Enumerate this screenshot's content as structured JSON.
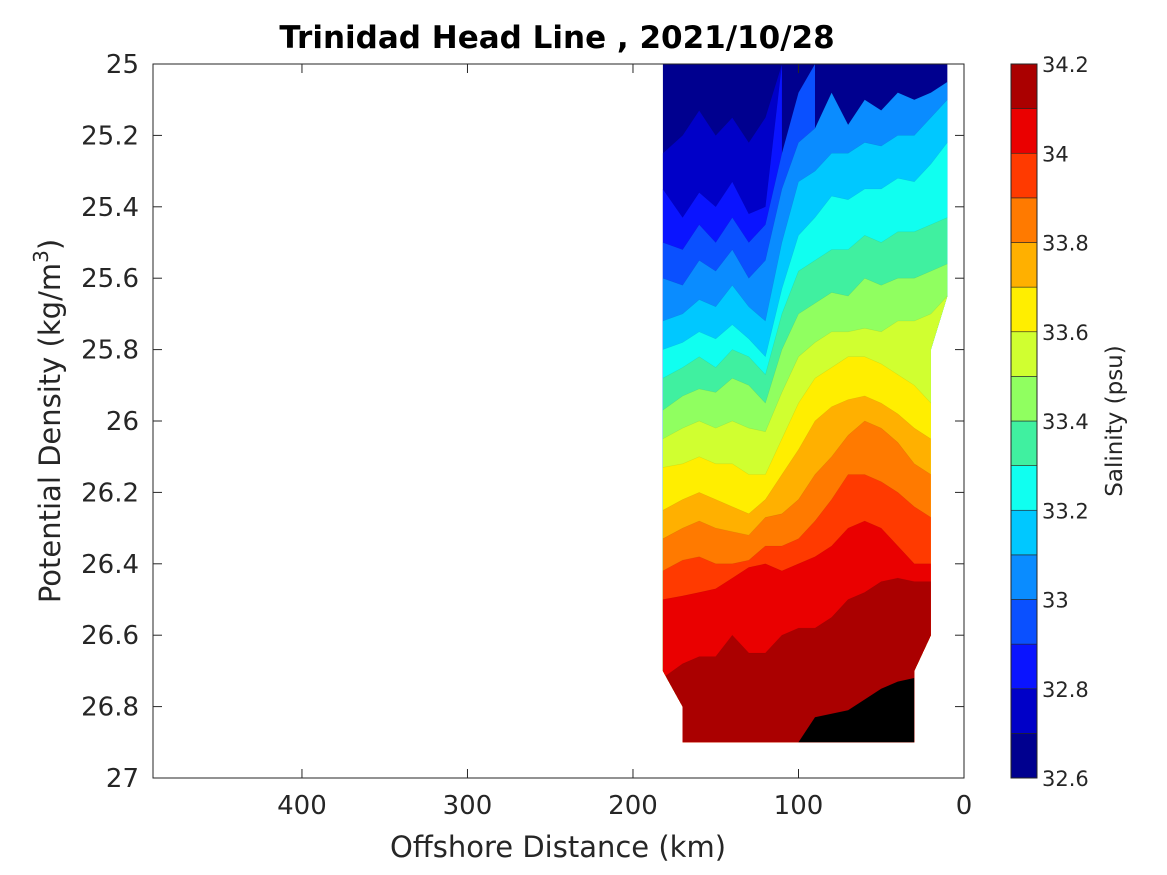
{
  "chart_data": {
    "type": "contour",
    "title": "Trinidad Head Line , 2021/10/28",
    "xlabel": "Offshore Distance (km)",
    "ylabel_main": "Potential Density (kg/m",
    "ylabel_sup": "3",
    "ylabel_close": ")",
    "xlim": [
      490,
      0
    ],
    "ylim": [
      25,
      27
    ],
    "x_ticks": [
      "400",
      "300",
      "200",
      "100",
      "0"
    ],
    "x_tick_values": [
      400,
      300,
      200,
      100,
      0
    ],
    "y_ticks": [
      "25",
      "25.2",
      "25.4",
      "25.6",
      "25.8",
      "26",
      "26.2",
      "26.4",
      "26.6",
      "26.8",
      "27"
    ],
    "y_tick_values": [
      25,
      25.2,
      25.4,
      25.6,
      25.8,
      26,
      26.2,
      26.4,
      26.6,
      26.8,
      27
    ],
    "colorbar": {
      "label": "Salinity (psu)",
      "range": [
        32.6,
        34.2
      ],
      "ticks": [
        "34.2",
        "34",
        "33.8",
        "33.6",
        "33.4",
        "33.2",
        "33",
        "32.8",
        "32.6"
      ],
      "tick_values": [
        34.2,
        34.0,
        33.8,
        33.6,
        33.4,
        33.2,
        33.0,
        32.8,
        32.6
      ],
      "levels": [
        32.6,
        32.7,
        32.8,
        32.9,
        33.0,
        33.1,
        33.2,
        33.3,
        33.4,
        33.5,
        33.6,
        33.7,
        33.8,
        33.9,
        34.0,
        34.1,
        34.2
      ],
      "colors": [
        "#00008f",
        "#0000c8",
        "#0a14ff",
        "#0a50ff",
        "#0a8cff",
        "#00c8ff",
        "#10fff0",
        "#40f0a0",
        "#90ff60",
        "#d0ff30",
        "#ffee00",
        "#ffb000",
        "#ff7a00",
        "#ff3a00",
        "#ea0000",
        "#aa0000"
      ]
    },
    "data_region": {
      "x_range_km": [
        10,
        182
      ],
      "sigma_range": [
        25,
        26.9
      ],
      "boundary": [
        [
          182,
          25
        ],
        [
          10,
          25
        ],
        [
          10,
          25.65
        ],
        [
          20,
          25.8
        ],
        [
          20,
          26.6
        ],
        [
          30,
          26.7
        ],
        [
          30,
          26.9
        ],
        [
          170,
          26.9
        ],
        [
          170,
          26.8
        ],
        [
          182,
          26.7
        ]
      ]
    },
    "contours": [
      {
        "salinity": 32.7,
        "points": [
          [
            182,
            25.25
          ],
          [
            170,
            25.2
          ],
          [
            160,
            25.13
          ],
          [
            150,
            25.2
          ],
          [
            140,
            25.15
          ],
          [
            130,
            25.22
          ],
          [
            120,
            25.15
          ],
          [
            110,
            25.0
          ]
        ]
      },
      {
        "salinity": 32.8,
        "points": [
          [
            182,
            25.35
          ],
          [
            170,
            25.43
          ],
          [
            160,
            25.36
          ],
          [
            150,
            25.4
          ],
          [
            140,
            25.33
          ],
          [
            130,
            25.42
          ],
          [
            120,
            25.4
          ],
          [
            110,
            25.0
          ]
        ]
      },
      {
        "salinity": 32.9,
        "points": [
          [
            182,
            25.5
          ],
          [
            170,
            25.52
          ],
          [
            160,
            25.45
          ],
          [
            150,
            25.5
          ],
          [
            140,
            25.43
          ],
          [
            130,
            25.5
          ],
          [
            120,
            25.45
          ],
          [
            110,
            25.25
          ],
          [
            100,
            25.08
          ],
          [
            90,
            25.0
          ]
        ]
      },
      {
        "salinity": 33.0,
        "points": [
          [
            182,
            25.6
          ],
          [
            170,
            25.62
          ],
          [
            160,
            25.55
          ],
          [
            150,
            25.58
          ],
          [
            140,
            25.52
          ],
          [
            130,
            25.6
          ],
          [
            120,
            25.55
          ],
          [
            110,
            25.35
          ],
          [
            100,
            25.22
          ],
          [
            90,
            25.18
          ],
          [
            80,
            25.08
          ],
          [
            70,
            25.17
          ],
          [
            60,
            25.1
          ],
          [
            50,
            25.13
          ],
          [
            40,
            25.08
          ],
          [
            30,
            25.1
          ],
          [
            20,
            25.08
          ],
          [
            10,
            25.05
          ]
        ]
      },
      {
        "salinity": 33.1,
        "points": [
          [
            182,
            25.72
          ],
          [
            170,
            25.7
          ],
          [
            160,
            25.66
          ],
          [
            150,
            25.68
          ],
          [
            140,
            25.62
          ],
          [
            130,
            25.68
          ],
          [
            120,
            25.72
          ],
          [
            110,
            25.5
          ],
          [
            100,
            25.33
          ],
          [
            90,
            25.3
          ],
          [
            80,
            25.25
          ],
          [
            70,
            25.25
          ],
          [
            60,
            25.22
          ],
          [
            50,
            25.23
          ],
          [
            40,
            25.2
          ],
          [
            30,
            25.2
          ],
          [
            20,
            25.15
          ],
          [
            10,
            25.1
          ]
        ]
      },
      {
        "salinity": 33.2,
        "points": [
          [
            182,
            25.8
          ],
          [
            170,
            25.78
          ],
          [
            160,
            25.75
          ],
          [
            150,
            25.77
          ],
          [
            140,
            25.73
          ],
          [
            130,
            25.77
          ],
          [
            120,
            25.82
          ],
          [
            110,
            25.63
          ],
          [
            100,
            25.48
          ],
          [
            90,
            25.43
          ],
          [
            80,
            25.37
          ],
          [
            70,
            25.38
          ],
          [
            60,
            25.35
          ],
          [
            50,
            25.35
          ],
          [
            40,
            25.32
          ],
          [
            30,
            25.33
          ],
          [
            20,
            25.28
          ],
          [
            10,
            25.22
          ]
        ]
      },
      {
        "salinity": 33.3,
        "points": [
          [
            182,
            25.88
          ],
          [
            170,
            25.85
          ],
          [
            160,
            25.82
          ],
          [
            150,
            25.85
          ],
          [
            140,
            25.8
          ],
          [
            130,
            25.82
          ],
          [
            120,
            25.87
          ],
          [
            110,
            25.7
          ],
          [
            100,
            25.58
          ],
          [
            90,
            25.55
          ],
          [
            80,
            25.52
          ],
          [
            70,
            25.52
          ],
          [
            60,
            25.48
          ],
          [
            50,
            25.5
          ],
          [
            40,
            25.47
          ],
          [
            30,
            25.47
          ],
          [
            20,
            25.45
          ],
          [
            10,
            25.43
          ]
        ]
      },
      {
        "salinity": 33.4,
        "points": [
          [
            182,
            25.97
          ],
          [
            170,
            25.93
          ],
          [
            160,
            25.91
          ],
          [
            150,
            25.92
          ],
          [
            140,
            25.88
          ],
          [
            130,
            25.9
          ],
          [
            120,
            25.95
          ],
          [
            110,
            25.8
          ],
          [
            100,
            25.7
          ],
          [
            90,
            25.67
          ],
          [
            80,
            25.64
          ],
          [
            70,
            25.65
          ],
          [
            60,
            25.6
          ],
          [
            50,
            25.62
          ],
          [
            40,
            25.6
          ],
          [
            30,
            25.6
          ],
          [
            20,
            25.58
          ],
          [
            10,
            25.56
          ]
        ]
      },
      {
        "salinity": 33.5,
        "points": [
          [
            182,
            26.05
          ],
          [
            170,
            26.02
          ],
          [
            160,
            26.0
          ],
          [
            150,
            26.02
          ],
          [
            140,
            26.0
          ],
          [
            130,
            26.02
          ],
          [
            120,
            26.03
          ],
          [
            110,
            25.92
          ],
          [
            100,
            25.82
          ],
          [
            90,
            25.78
          ],
          [
            80,
            25.75
          ],
          [
            70,
            25.75
          ],
          [
            60,
            25.74
          ],
          [
            50,
            25.75
          ],
          [
            40,
            25.72
          ],
          [
            30,
            25.72
          ],
          [
            20,
            25.7
          ],
          [
            10,
            25.65
          ]
        ]
      },
      {
        "salinity": 33.6,
        "points": [
          [
            182,
            26.13
          ],
          [
            170,
            26.12
          ],
          [
            160,
            26.1
          ],
          [
            150,
            26.12
          ],
          [
            140,
            26.12
          ],
          [
            130,
            26.15
          ],
          [
            120,
            26.15
          ],
          [
            110,
            26.05
          ],
          [
            100,
            25.95
          ],
          [
            90,
            25.88
          ],
          [
            80,
            25.85
          ],
          [
            70,
            25.82
          ],
          [
            60,
            25.82
          ],
          [
            50,
            25.84
          ],
          [
            40,
            25.87
          ],
          [
            30,
            25.9
          ],
          [
            20,
            25.95
          ]
        ]
      },
      {
        "salinity": 33.7,
        "points": [
          [
            182,
            26.25
          ],
          [
            170,
            26.22
          ],
          [
            160,
            26.2
          ],
          [
            150,
            26.22
          ],
          [
            140,
            26.24
          ],
          [
            130,
            26.26
          ],
          [
            120,
            26.22
          ],
          [
            110,
            26.15
          ],
          [
            100,
            26.08
          ],
          [
            90,
            26.0
          ],
          [
            80,
            25.96
          ],
          [
            70,
            25.94
          ],
          [
            60,
            25.93
          ],
          [
            50,
            25.95
          ],
          [
            40,
            25.98
          ],
          [
            30,
            26.02
          ],
          [
            20,
            26.05
          ]
        ]
      },
      {
        "salinity": 33.8,
        "points": [
          [
            182,
            26.33
          ],
          [
            170,
            26.3
          ],
          [
            160,
            26.28
          ],
          [
            150,
            26.3
          ],
          [
            140,
            26.31
          ],
          [
            130,
            26.32
          ],
          [
            120,
            26.27
          ],
          [
            110,
            26.26
          ],
          [
            100,
            26.22
          ],
          [
            90,
            26.15
          ],
          [
            80,
            26.1
          ],
          [
            70,
            26.04
          ],
          [
            60,
            26.0
          ],
          [
            50,
            26.02
          ],
          [
            40,
            26.06
          ],
          [
            30,
            26.12
          ],
          [
            20,
            26.15
          ]
        ]
      },
      {
        "salinity": 33.9,
        "points": [
          [
            182,
            26.42
          ],
          [
            170,
            26.39
          ],
          [
            160,
            26.38
          ],
          [
            150,
            26.4
          ],
          [
            140,
            26.4
          ],
          [
            130,
            26.39
          ],
          [
            120,
            26.35
          ],
          [
            110,
            26.35
          ],
          [
            100,
            26.33
          ],
          [
            90,
            26.28
          ],
          [
            80,
            26.22
          ],
          [
            70,
            26.15
          ],
          [
            60,
            26.15
          ],
          [
            50,
            26.17
          ],
          [
            40,
            26.2
          ],
          [
            30,
            26.24
          ],
          [
            20,
            26.27
          ]
        ]
      },
      {
        "salinity": 34.0,
        "points": [
          [
            182,
            26.5
          ],
          [
            170,
            26.49
          ],
          [
            160,
            26.48
          ],
          [
            150,
            26.47
          ],
          [
            140,
            26.44
          ],
          [
            130,
            26.41
          ],
          [
            120,
            26.4
          ],
          [
            110,
            26.42
          ],
          [
            100,
            26.4
          ],
          [
            90,
            26.38
          ],
          [
            80,
            26.35
          ],
          [
            70,
            26.3
          ],
          [
            60,
            26.28
          ],
          [
            50,
            26.3
          ],
          [
            40,
            26.35
          ],
          [
            30,
            26.4
          ],
          [
            20,
            26.4
          ]
        ]
      },
      {
        "salinity": 34.1,
        "points": [
          [
            182,
            26.72
          ],
          [
            170,
            26.68
          ],
          [
            160,
            26.66
          ],
          [
            150,
            26.66
          ],
          [
            140,
            26.6
          ],
          [
            130,
            26.65
          ],
          [
            120,
            26.65
          ],
          [
            110,
            26.6
          ],
          [
            100,
            26.58
          ],
          [
            90,
            26.58
          ],
          [
            80,
            26.55
          ],
          [
            70,
            26.5
          ],
          [
            60,
            26.48
          ],
          [
            50,
            26.45
          ],
          [
            40,
            26.44
          ],
          [
            30,
            26.45
          ],
          [
            20,
            26.45
          ]
        ]
      },
      {
        "salinity": 34.2,
        "points": [
          [
            100,
            26.9
          ],
          [
            90,
            26.83
          ],
          [
            80,
            26.82
          ],
          [
            70,
            26.81
          ],
          [
            60,
            26.78
          ],
          [
            50,
            26.75
          ],
          [
            40,
            26.73
          ],
          [
            30,
            26.72
          ]
        ]
      }
    ]
  }
}
